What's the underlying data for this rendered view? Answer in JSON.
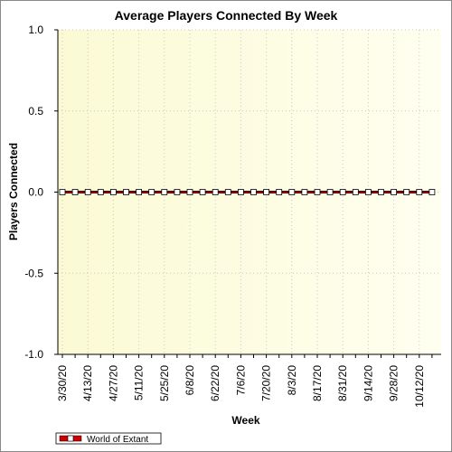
{
  "chart_data": {
    "type": "line",
    "title": "Average Players Connected By Week",
    "xlabel": "Week",
    "ylabel": "Players Connected",
    "ylim": [
      -1.0,
      1.0
    ],
    "yticks": [
      1.0,
      0.5,
      0.0,
      -0.5,
      -1.0
    ],
    "ytick_labels": [
      "1.0",
      "0.5",
      "0.0",
      "-0.5",
      "-1.0"
    ],
    "x": [
      "3/30/20",
      "4/6/20",
      "4/13/20",
      "4/20/20",
      "4/27/20",
      "5/4/20",
      "5/11/20",
      "5/18/20",
      "5/25/20",
      "6/1/20",
      "6/8/20",
      "6/15/20",
      "6/22/20",
      "6/29/20",
      "7/6/20",
      "7/13/20",
      "7/20/20",
      "7/27/20",
      "8/3/20",
      "8/10/20",
      "8/17/20",
      "8/24/20",
      "8/31/20",
      "9/7/20",
      "9/14/20",
      "9/21/20",
      "9/28/20",
      "10/5/20",
      "10/12/20",
      "10/19/20"
    ],
    "x_tick_labels": [
      "3/30/20",
      "",
      "4/13/20",
      "",
      "4/27/20",
      "",
      "5/11/20",
      "",
      "5/25/20",
      "",
      "6/8/20",
      "",
      "6/22/20",
      "",
      "7/6/20",
      "",
      "7/20/20",
      "",
      "8/3/20",
      "",
      "8/17/20",
      "",
      "8/31/20",
      "",
      "9/14/20",
      "",
      "9/28/20",
      "",
      "10/12/20",
      ""
    ],
    "series": [
      {
        "name": "World of Extant",
        "color": "#cc0000",
        "values": [
          0,
          0,
          0,
          0,
          0,
          0,
          0,
          0,
          0,
          0,
          0,
          0,
          0,
          0,
          0,
          0,
          0,
          0,
          0,
          0,
          0,
          0,
          0,
          0,
          0,
          0,
          0,
          0,
          0,
          0
        ]
      }
    ],
    "grid": true,
    "legend": "bottom-left",
    "background_gradient": [
      "#fbfbd9",
      "#ffffee"
    ]
  }
}
